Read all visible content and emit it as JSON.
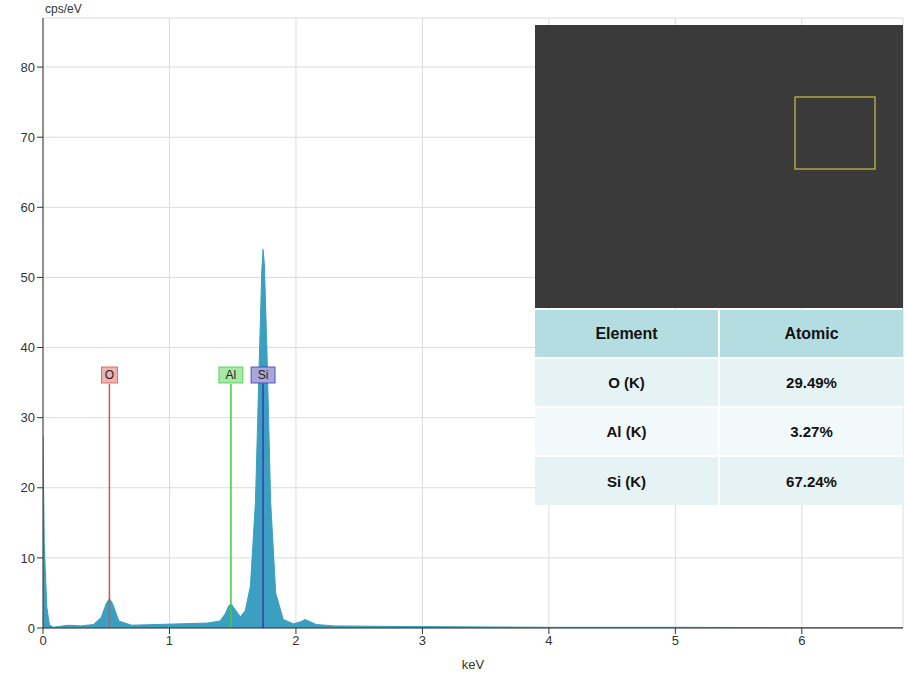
{
  "chart_data": {
    "type": "area",
    "y_label": "cps/eV",
    "x_label": "keV",
    "color": "#3a9fc0",
    "grid": true,
    "legend": false,
    "xlim": [
      0,
      6.8
    ],
    "xticks": [
      0,
      1,
      2,
      3,
      4,
      5,
      6
    ],
    "ylim": [
      0,
      87
    ],
    "yticks": [
      0,
      10,
      20,
      30,
      40,
      50,
      60,
      70,
      80
    ],
    "x": [
      0,
      0.01,
      0.03,
      0.05,
      0.08,
      0.12,
      0.2,
      0.3,
      0.4,
      0.46,
      0.5,
      0.525,
      0.55,
      0.6,
      0.7,
      0.9,
      1.1,
      1.3,
      1.4,
      1.44,
      1.47,
      1.49,
      1.52,
      1.56,
      1.6,
      1.64,
      1.68,
      1.71,
      1.73,
      1.74,
      1.75,
      1.77,
      1.8,
      1.84,
      1.9,
      1.98,
      2.04,
      2.07,
      2.1,
      2.16,
      2.3,
      2.6,
      3,
      3.5,
      4,
      5,
      6,
      6.8
    ],
    "values": [
      27.5,
      12,
      3,
      0.5,
      0.1,
      0.2,
      0.4,
      0.3,
      0.5,
      1.5,
      3.5,
      4.2,
      3.5,
      1.0,
      0.4,
      0.5,
      0.6,
      0.7,
      1.0,
      2.0,
      3.2,
      3.4,
      2.6,
      1.6,
      2.5,
      6,
      18,
      38,
      51,
      54,
      52,
      40,
      18,
      5,
      1.2,
      0.6,
      0.9,
      1.2,
      1.0,
      0.5,
      0.3,
      0.25,
      0.2,
      0.15,
      0.1,
      0.1,
      0.05,
      0.05
    ],
    "peak_markers": [
      {
        "name": "O",
        "energy": 0.525,
        "color": "#d9534f"
      },
      {
        "name": "Al",
        "energy": 1.486,
        "color": "#3ecf3e"
      },
      {
        "name": "Si",
        "energy": 1.74,
        "color": "#3b3bb3"
      }
    ]
  },
  "table": {
    "header": [
      "Element",
      "Atomic"
    ],
    "rows": [
      [
        "O (K)",
        "29.49%"
      ],
      [
        "Al (K)",
        "3.27%"
      ],
      [
        "Si (K)",
        "67.24%"
      ]
    ]
  }
}
